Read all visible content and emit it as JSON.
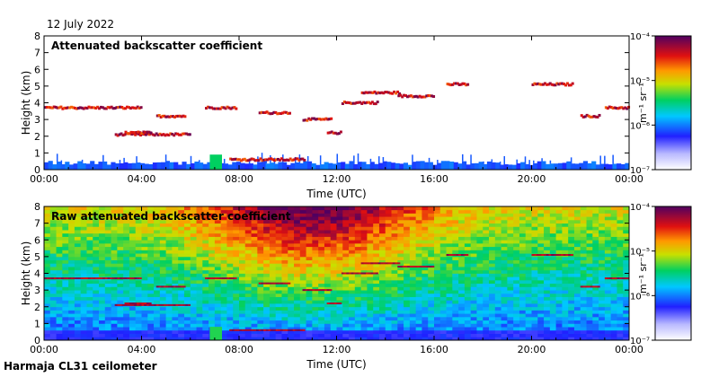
{
  "date": "12 July 2022",
  "station": "Harmaja CL31 ceilometer",
  "chart_data": [
    {
      "type": "heatmap",
      "title": "Attenuated backscatter coefficient",
      "xlabel": "Time (UTC)",
      "ylabel": "Height (km)",
      "x_ticks": [
        "00:00",
        "04:00",
        "08:00",
        "12:00",
        "16:00",
        "20:00",
        "00:00"
      ],
      "y_ticks": [
        "0",
        "1",
        "2",
        "3",
        "4",
        "5",
        "6",
        "7",
        "8"
      ],
      "xlim_hours": [
        0,
        24
      ],
      "ylim_km": [
        0,
        8
      ],
      "colorbar": {
        "label": "m⁻¹ sr⁻¹",
        "scale": "log",
        "range": [
          1e-07,
          0.0001
        ],
        "tick_labels": [
          "10⁻⁴",
          "10⁻⁵",
          "10⁻⁶",
          "10⁻⁷"
        ]
      },
      "features": {
        "boundary_layer_top_km": 0.4,
        "cloud_layers": [
          {
            "start_h": 0.0,
            "end_h": 4.0,
            "height_km": 3.7
          },
          {
            "start_h": 2.9,
            "end_h": 6.0,
            "height_km": 2.1
          },
          {
            "start_h": 3.3,
            "end_h": 4.4,
            "height_km": 2.2
          },
          {
            "start_h": 4.6,
            "end_h": 5.8,
            "height_km": 3.2
          },
          {
            "start_h": 6.6,
            "end_h": 7.9,
            "height_km": 3.7
          },
          {
            "start_h": 7.6,
            "end_h": 10.7,
            "height_km": 0.6
          },
          {
            "start_h": 8.8,
            "end_h": 10.1,
            "height_km": 3.4
          },
          {
            "start_h": 10.6,
            "end_h": 11.8,
            "height_km": 3.0
          },
          {
            "start_h": 11.6,
            "end_h": 12.2,
            "height_km": 2.2
          },
          {
            "start_h": 12.2,
            "end_h": 13.7,
            "height_km": 4.0
          },
          {
            "start_h": 13.0,
            "end_h": 14.6,
            "height_km": 4.6
          },
          {
            "start_h": 14.5,
            "end_h": 16.0,
            "height_km": 4.4
          },
          {
            "start_h": 16.5,
            "end_h": 17.4,
            "height_km": 5.1
          },
          {
            "start_h": 20.0,
            "end_h": 21.7,
            "height_km": 5.1
          },
          {
            "start_h": 22.0,
            "end_h": 22.8,
            "height_km": 3.2
          },
          {
            "start_h": 23.0,
            "end_h": 24.0,
            "height_km": 3.7
          }
        ]
      }
    },
    {
      "type": "heatmap",
      "title": "Raw attenuated backscatter coefficient",
      "xlabel": "Time (UTC)",
      "ylabel": "Height (km)",
      "x_ticks": [
        "00:00",
        "04:00",
        "08:00",
        "12:00",
        "16:00",
        "20:00",
        "00:00"
      ],
      "y_ticks": [
        "0",
        "1",
        "2",
        "3",
        "4",
        "5",
        "6",
        "7",
        "8"
      ],
      "xlim_hours": [
        0,
        24
      ],
      "ylim_km": [
        0,
        8
      ],
      "colorbar": {
        "label": "m⁻¹ sr⁻¹",
        "scale": "log",
        "range": [
          1e-07,
          0.0001
        ],
        "tick_labels": [
          "10⁻⁴",
          "10⁻⁵",
          "10⁻⁶",
          "10⁻⁷"
        ]
      }
    }
  ]
}
